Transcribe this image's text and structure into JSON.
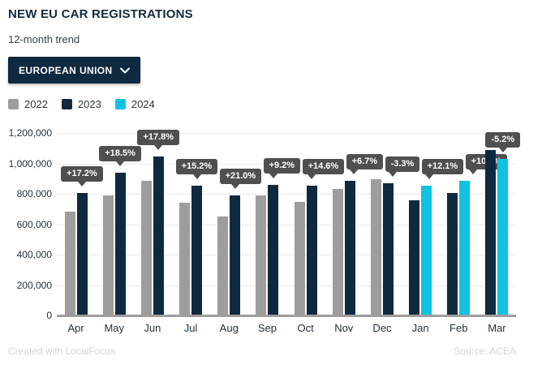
{
  "header": {
    "title": "NEW EU CAR REGISTRATIONS",
    "subtitle": "12-month trend"
  },
  "filter": {
    "label": "EUROPEAN UNION",
    "chevron_icon": "chevron-down"
  },
  "legend": [
    {
      "label": "2022",
      "color": "#9d9d9d"
    },
    {
      "label": "2023",
      "color": "#0f2a3f"
    },
    {
      "label": "2024",
      "color": "#0fc2e0"
    }
  ],
  "colors": {
    "accent_navy": "#0e2940",
    "bar_2022": "#9d9d9d",
    "bar_2023": "#0f2a3f",
    "bar_2024": "#0fc2e0",
    "label_bg": "#4f4f4f",
    "gridline": "#e8e8e8",
    "axis_line": "#9e9e9e"
  },
  "chart_data": {
    "type": "bar",
    "title": "NEW EU CAR REGISTRATIONS",
    "xlabel": "",
    "ylabel": "",
    "grid": true,
    "legend_position": "top-left",
    "ylim": [
      0,
      1200000
    ],
    "yticks": [
      {
        "v": 0,
        "label": "0"
      },
      {
        "v": 200000,
        "label": "200,000"
      },
      {
        "v": 400000,
        "label": "400,000"
      },
      {
        "v": 600000,
        "label": "600,000"
      },
      {
        "v": 800000,
        "label": "800,000"
      },
      {
        "v": 1000000,
        "label": "1,000,000"
      },
      {
        "v": 1200000,
        "label": "1,200,000"
      }
    ],
    "categories": [
      "Apr",
      "May",
      "Jun",
      "Jul",
      "Aug",
      "Sep",
      "Oct",
      "Nov",
      "Dec",
      "Jan",
      "Feb",
      "Mar"
    ],
    "series": [
      {
        "name": "2022",
        "color": "#9d9d9d",
        "values": [
          685000,
          792000,
          887000,
          739000,
          651000,
          789000,
          746000,
          830000,
          897000,
          null,
          null,
          null
        ]
      },
      {
        "name": "2023",
        "color": "#0f2a3f",
        "values": [
          803000,
          939000,
          1045000,
          851000,
          788000,
          861000,
          855000,
          886000,
          867000,
          760000,
          803000,
          1088000
        ]
      },
      {
        "name": "2024",
        "color": "#0fc2e0",
        "values": [
          null,
          null,
          null,
          null,
          null,
          null,
          null,
          null,
          null,
          852000,
          884000,
          1032000
        ]
      }
    ],
    "annotations": [
      "+17.2%",
      "+18.5%",
      "+17.8%",
      "+15.2%",
      "+21.0%",
      "+9.2%",
      "+14.6%",
      "+6.7%",
      "-3.3%",
      "+12.1%",
      "+10.1%",
      "-5.2%"
    ]
  },
  "footer": {
    "left": "Created with LocalFocus",
    "right": "Source: ACEA"
  }
}
